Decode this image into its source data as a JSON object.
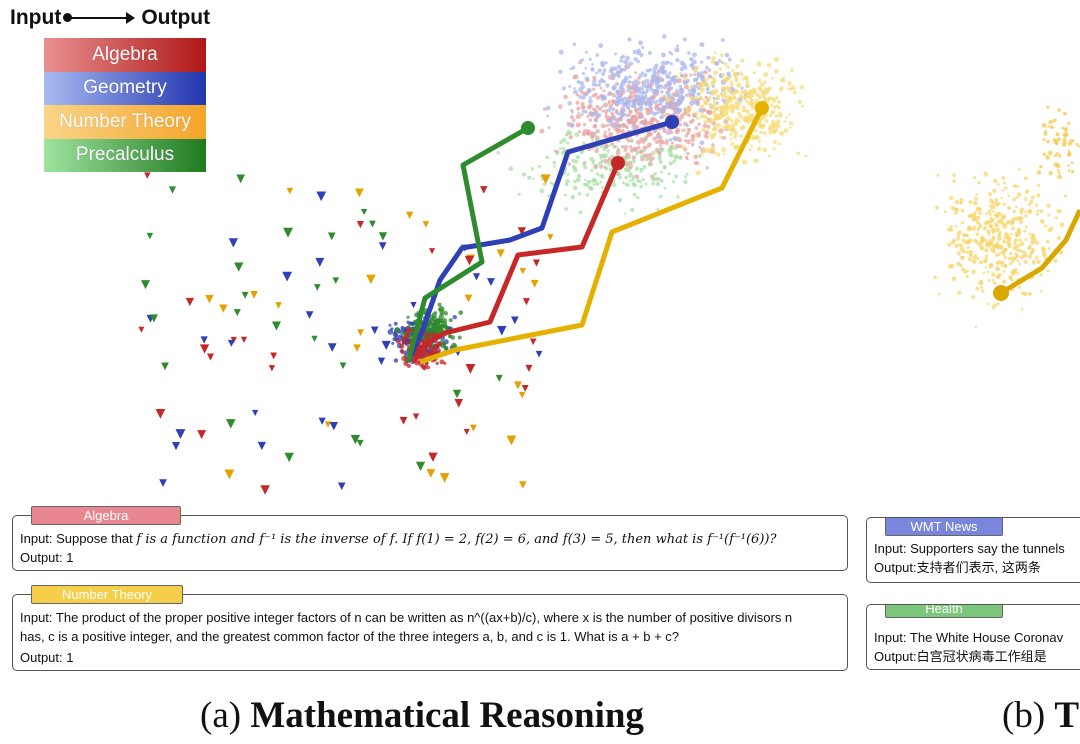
{
  "legend": {
    "input_label": "Input",
    "output_label": "Output",
    "categories": [
      {
        "name": "Algebra",
        "color": "#c62828",
        "light": "#e88a8a"
      },
      {
        "name": "Geometry",
        "color": "#2f3fb5",
        "light": "#8fa6ea"
      },
      {
        "name": "Number Theory",
        "color": "#e5b100",
        "light": "#f7d56a"
      },
      {
        "name": "Precalculus",
        "color": "#2e8b2e",
        "light": "#8fdc8f"
      }
    ],
    "right_categories": [
      {
        "name": "WMT News",
        "color": "#6f7ad8"
      },
      {
        "name": "Health",
        "color": "#70c070"
      }
    ]
  },
  "chart_data": {
    "type": "line",
    "title": "",
    "xlabel": "",
    "ylabel": "",
    "grid": false,
    "legend_placement": "top-left",
    "series": [
      {
        "name": "Algebra",
        "color": "#c62828",
        "x": [
          413,
          428,
          445,
          490,
          518,
          582,
          618
        ],
        "y": [
          362,
          342,
          333,
          322,
          255,
          247,
          163
        ]
      },
      {
        "name": "Geometry",
        "color": "#2f3fb5",
        "x": [
          408,
          422,
          440,
          462,
          510,
          542,
          568,
          672
        ],
        "y": [
          362,
          332,
          280,
          248,
          240,
          228,
          152,
          122
        ]
      },
      {
        "name": "Number Theory",
        "color": "#e5b100",
        "x": [
          420,
          455,
          582,
          612,
          722,
          762
        ],
        "y": [
          362,
          350,
          325,
          232,
          188,
          108
        ]
      },
      {
        "name": "Precalculus",
        "color": "#2e8b2e",
        "x": [
          408,
          425,
          482,
          463,
          528
        ],
        "y": [
          362,
          298,
          262,
          165,
          128
        ]
      }
    ],
    "right_panel_series": [
      {
        "name": "",
        "color": "#d9a800",
        "x": [
          1001,
          1042,
          1066,
          1080
        ],
        "y": [
          293,
          268,
          240,
          210
        ]
      }
    ]
  },
  "cards": [
    {
      "tag": "Algebra",
      "input_prefix": "Input: Suppose that ",
      "input_math": "f is a function and f⁻¹ is the inverse of f. If f(1) = 2, f(2) = 6, and f(3) = 5, then what is f⁻¹(f⁻¹(6))?",
      "output": "Output: 1"
    },
    {
      "tag": "Number Theory",
      "line1": "Input: The product of the proper positive integer factors of n can be written as n^((ax+b)/c), where x is the number of positive divisors n",
      "line2": "has, c is a positive integer, and the greatest common factor of the three integers a, b, and c is 1. What is a + b + c?",
      "output": "Output: 1"
    },
    {
      "tag": "WMT News",
      "input": "Input: Supporters say the tunnels",
      "output": "Output:支持者们表示, 这两条"
    },
    {
      "tag": "Health",
      "input": "Input: The White House Coronav",
      "output": "Output:白宫冠状病毒工作组是"
    }
  ],
  "captions": {
    "left_prefix": "(a) ",
    "left_bold": "Mathematical Reasoning",
    "right_prefix": "(b) ",
    "right_bold": "T"
  }
}
